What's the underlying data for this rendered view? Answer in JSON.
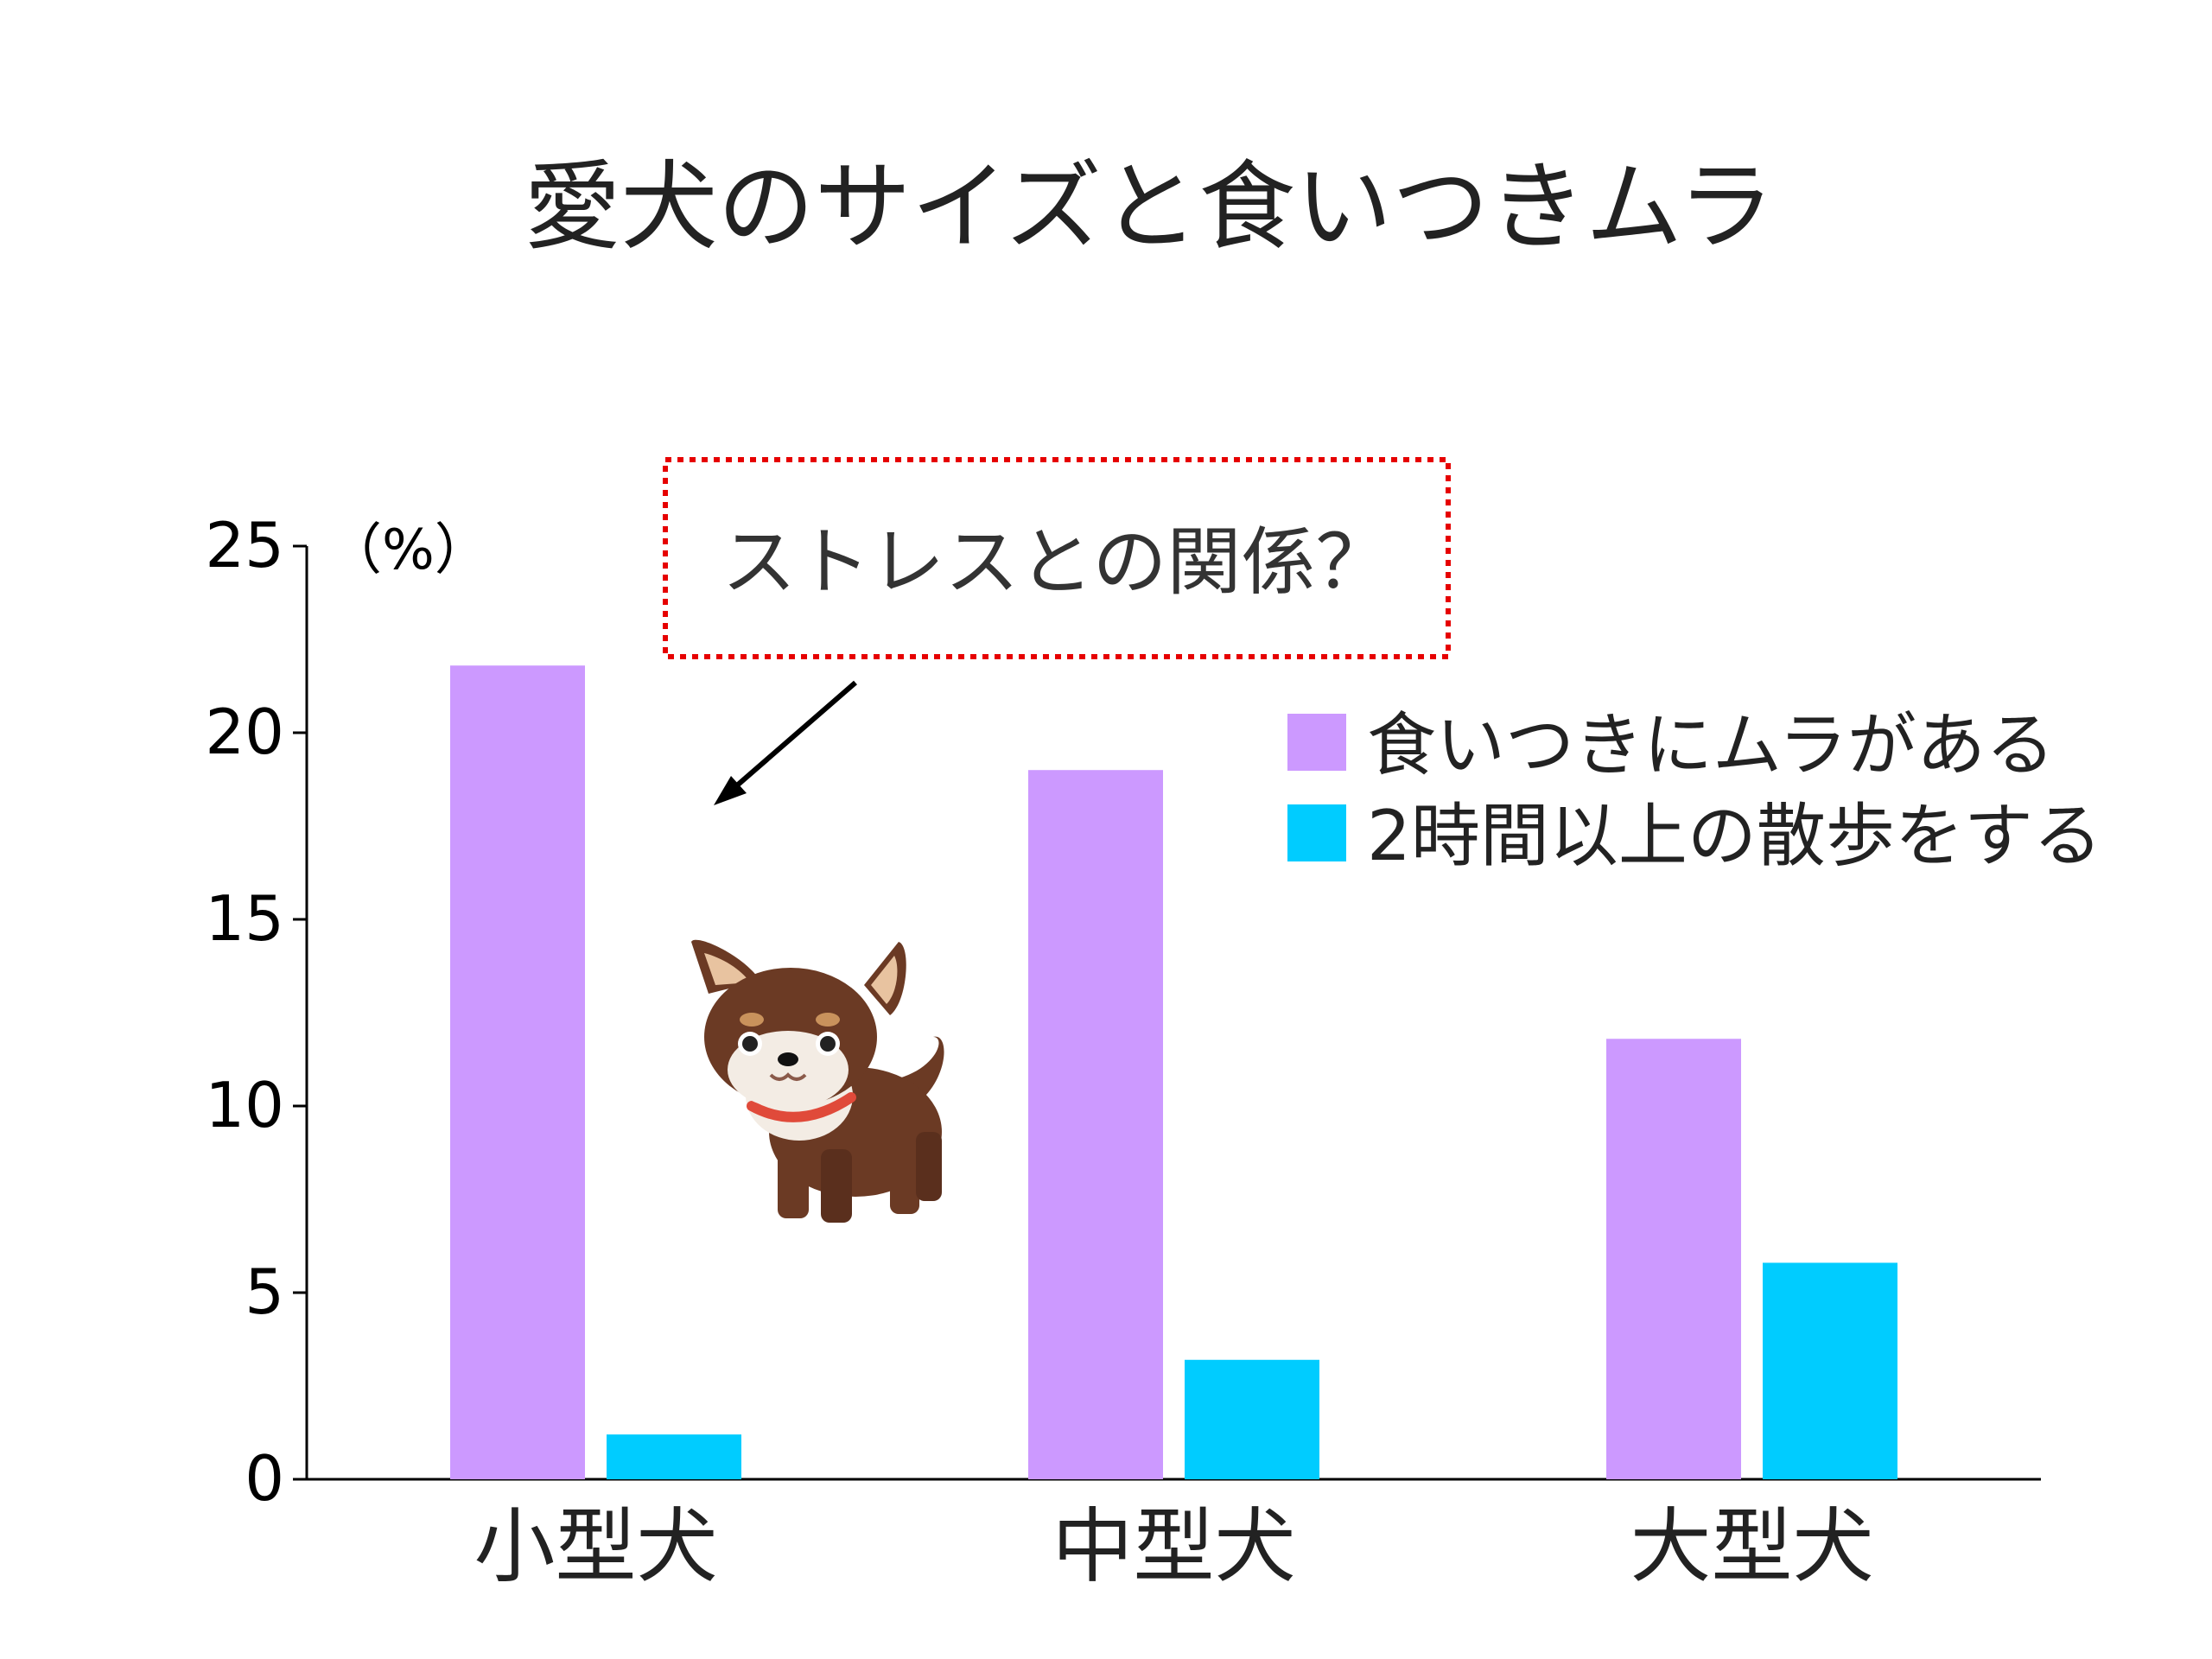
{
  "chart_data": {
    "type": "bar",
    "title": "愛犬のサイズと食いつきムラ",
    "unit_label": "（%）",
    "categories": [
      "小型犬",
      "中型犬",
      "大型犬"
    ],
    "ylim": [
      0,
      25
    ],
    "yticks": [
      0,
      5,
      10,
      15,
      20,
      25
    ],
    "series": [
      {
        "name": "食いつきにムラがある",
        "values": [
          21.8,
          19.0,
          11.8
        ],
        "color": "#cc99ff"
      },
      {
        "name": "2時間以上の散歩をする",
        "values": [
          1.2,
          3.2,
          5.8
        ],
        "color": "#00ccff"
      }
    ],
    "legend_position": "right",
    "grid": false,
    "annotation": "ストレスとの関係？",
    "annotation_border_color": "#e60000"
  },
  "illustration": {
    "icon": "chihuahua-dog-illustration"
  }
}
